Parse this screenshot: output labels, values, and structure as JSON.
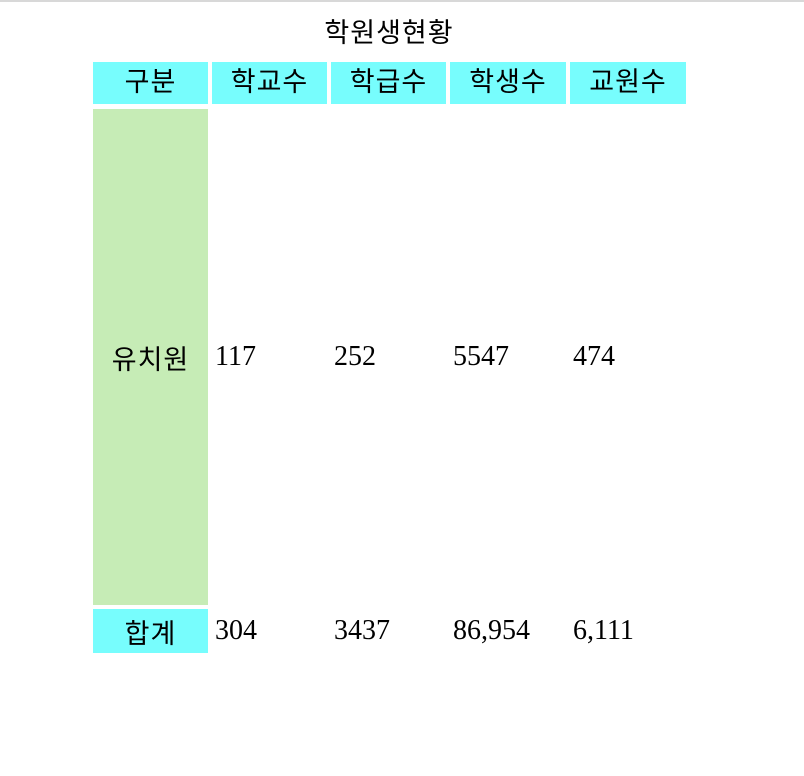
{
  "title": "학원생현황",
  "header": {
    "gubun": "구분",
    "schools": "학교수",
    "classes": "학급수",
    "students": "학생수",
    "teachers": "교원수"
  },
  "rows": [
    {
      "label": "유치원",
      "schools": "117",
      "classes": "252",
      "students": "5547",
      "teachers": "474"
    },
    {
      "label": "합계",
      "schools": "304",
      "classes": "3437",
      "students": "86,954",
      "teachers": "6,111"
    }
  ],
  "colors": {
    "header_bg": "#77fdfd",
    "kindergarten_bg": "#c6ecb6",
    "total_bg": "#77fdfd"
  }
}
